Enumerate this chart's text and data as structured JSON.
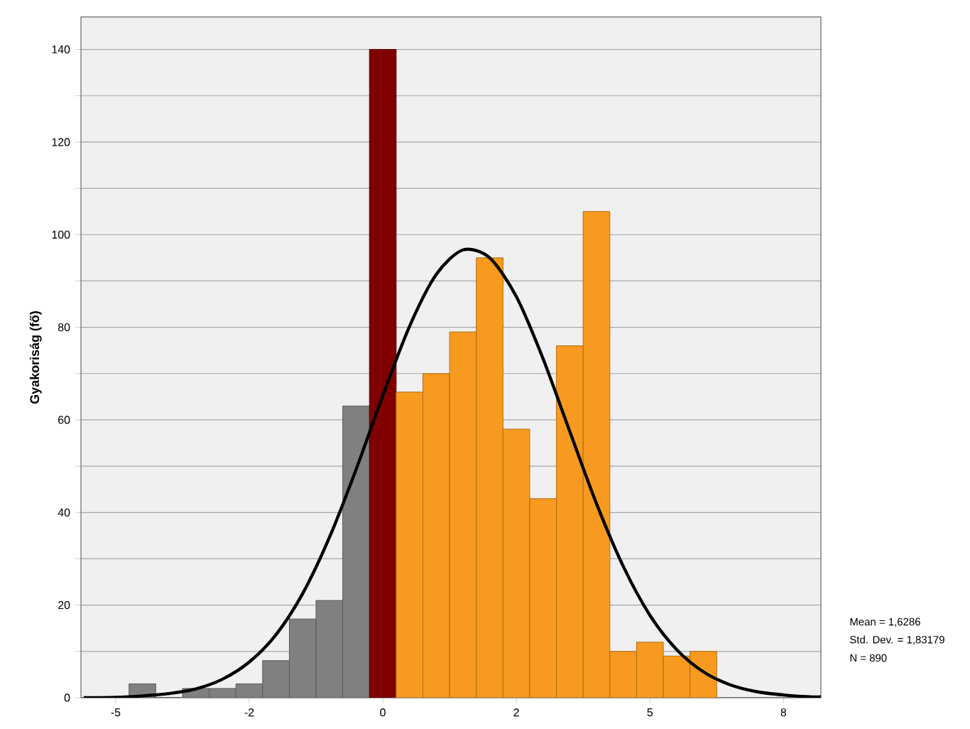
{
  "chart_data": {
    "type": "histogram",
    "ylabel": "Gyakoriság (fő)",
    "annotations": [
      "Mean = 1,6286",
      "Std. Dev. = 1,83179",
      "N = 890"
    ],
    "series": [
      {
        "bins": [
          -4.75,
          -4.25,
          -3.75,
          -3.25,
          -2.75,
          -2.25,
          -1.75,
          -1.25,
          -0.75,
          -0.25,
          0.25,
          0.75,
          1.25,
          1.75,
          2.25,
          2.75,
          3.25,
          3.75,
          4.25,
          4.75,
          5.25,
          5.75,
          6.25
        ],
        "values": [
          3,
          0,
          2,
          2,
          3,
          8,
          17,
          21,
          63,
          140,
          66,
          70,
          79,
          95,
          58,
          43,
          76,
          105,
          10,
          12,
          9,
          10
        ],
        "colors": [
          "#808080",
          "#808080",
          "#808080",
          "#808080",
          "#808080",
          "#808080",
          "#808080",
          "#808080",
          "#808080",
          "#800000",
          "#f89a1f",
          "#f89a1f",
          "#f89a1f",
          "#f89a1f",
          "#f89a1f",
          "#f89a1f",
          "#f89a1f",
          "#f89a1f",
          "#f89a1f",
          "#f89a1f",
          "#f89a1f",
          "#f89a1f"
        ]
      },
      {
        "type": "line",
        "color": "#000000",
        "x": [
          -5.6,
          -5,
          -4.5,
          -4,
          -3.5,
          -3,
          -2.5,
          -2,
          -1.5,
          -1,
          -0.5,
          0,
          0.5,
          1,
          1.5,
          2,
          2.5,
          3,
          3.5,
          4,
          4.5,
          5,
          5.5,
          6,
          6.5,
          7,
          7.5,
          8,
          8.2
        ],
        "values": [
          0.0,
          0.1,
          0.4,
          0.9,
          1.9,
          4.0,
          7.7,
          13.6,
          22.5,
          34.6,
          49.3,
          65.3,
          80.2,
          91.4,
          96.7,
          95.0,
          86.6,
          73.2,
          57.5,
          41.9,
          28.4,
          17.8,
          10.4,
          5.6,
          2.8,
          1.3,
          0.6,
          0.2,
          0.2
        ]
      }
    ],
    "xlim": [
      -5.65,
      8.2
    ],
    "ylim": [
      0,
      147
    ],
    "xticks": [
      {
        "value": -5,
        "label": "-5"
      },
      {
        "value": -2.5,
        "label": "-2"
      },
      {
        "value": 0,
        "label": "0"
      },
      {
        "value": 2.5,
        "label": "2"
      },
      {
        "value": 5,
        "label": "5"
      },
      {
        "value": 7.5,
        "label": "8"
      }
    ],
    "yticks": [
      0,
      {
        "value": 10,
        "label": null
      },
      20,
      {
        "value": 30,
        "label": null
      },
      40,
      {
        "value": 50,
        "label": null
      },
      60,
      {
        "value": 70,
        "label": null
      },
      80,
      {
        "value": 90,
        "label": null
      },
      100,
      {
        "value": 110,
        "label": null
      },
      120,
      {
        "value": 130,
        "label": null
      },
      140
    ],
    "grid": "y"
  }
}
